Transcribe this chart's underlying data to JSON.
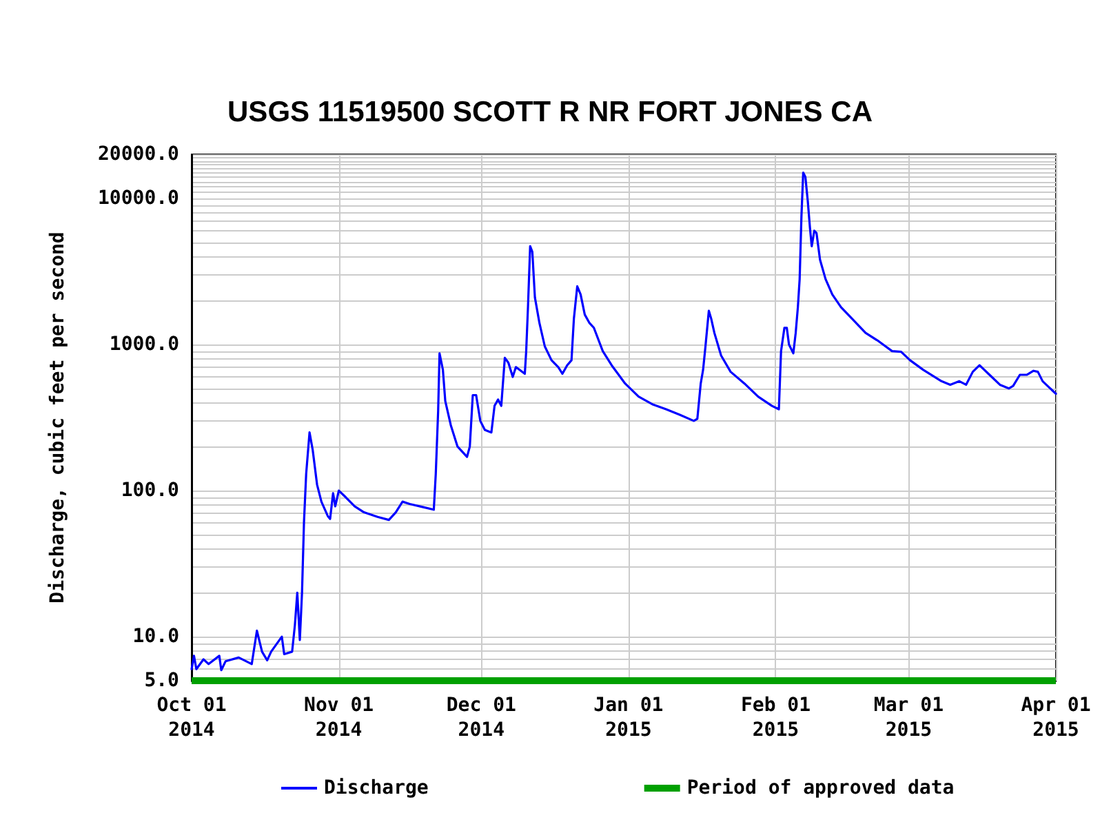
{
  "chart_data": {
    "type": "line",
    "title": "USGS 11519500 SCOTT R NR FORT JONES CA",
    "ylabel": "Discharge, cubic feet per second",
    "x": [
      "2014-10-01T00:00",
      "2014-10-01T12:00",
      "2014-10-02",
      "2014-10-03T12:00",
      "2014-10-04T14:00",
      "2014-10-06T20:00",
      "2014-10-07T06:00",
      "2014-10-08T04:00",
      "2014-10-10T22:00",
      "2014-10-13T16:00",
      "2014-10-14T18:00",
      "2014-10-15T20:00",
      "2014-10-16T22:00",
      "2014-10-17T18:00",
      "2014-10-20",
      "2014-10-20T12:00",
      "2014-10-22T04:00",
      "2014-10-22T18:00",
      "2014-10-23T06:00",
      "2014-10-23T19:00",
      "2014-10-24T06:00",
      "2014-10-24T16:00",
      "2014-10-25T03:00",
      "2014-10-25T20:00",
      "2014-10-26T12:00",
      "2014-10-27T10:00",
      "2014-10-28T08:00",
      "2014-10-29T16:00",
      "2014-10-30T04:00",
      "2014-10-30T19:00",
      "2014-10-31T06:00",
      "2014-11-01",
      "2014-11-02T11:00",
      "2014-11-04T08:00",
      "2014-11-06T07:00",
      "2014-11-09T04:00",
      "2014-11-11T13:00",
      "2014-11-13",
      "2014-11-14T10:00",
      "2014-11-15T22:00",
      "2014-11-18T19:00",
      "2014-11-21",
      "2014-11-21T10:00",
      "2014-11-21T22:00",
      "2014-11-22T05:00",
      "2014-11-22T22:00",
      "2014-11-23T10:00",
      "2014-11-24T14:00",
      "2014-11-26",
      "2014-11-28",
      "2014-11-28T14:00",
      "2014-11-29T05:00",
      "2014-11-29T22:00",
      "2014-11-30T19:00",
      "2014-12-01T18:00",
      "2014-12-03T03:00",
      "2014-12-03T19:00",
      "2014-12-04T13:00",
      "2014-12-05T05:00",
      "2014-12-05T23:00",
      "2014-12-06T17:00",
      "2014-12-07T15:00",
      "2014-12-08T07:00",
      "2014-12-10T04:00",
      "2014-12-10T11:00",
      "2014-12-10T20:00",
      "2014-12-11T07:00",
      "2014-12-11T18:00",
      "2014-12-12T07:00",
      "2014-12-13T06:00",
      "2014-12-14T09:00",
      "2014-12-15T19:00",
      "2014-12-17T05:00",
      "2014-12-18T02:00",
      "2014-12-19T02:00",
      "2014-12-20",
      "2014-12-20T12:00",
      "2014-12-21T05:00",
      "2014-12-21T22:00",
      "2014-12-22T19:00",
      "2014-12-23T19:00",
      "2014-12-24T17:00",
      "2014-12-26T14:00",
      "2014-12-28T11:00",
      "2014-12-31T07:00",
      "2015-01-03T03:00",
      "2015-01-06",
      "2015-01-08T22:00",
      "2015-01-11T19:00",
      "2015-01-14T18:00",
      "2015-01-15T12:00",
      "2015-01-16T05:00",
      "2015-01-16T17:00",
      "2015-01-17T05:00",
      "2015-01-17T22:00",
      "2015-01-18T10:00",
      "2015-01-19T02:00",
      "2015-01-20T12:00",
      "2015-01-22T12:00",
      "2015-01-25T10:00",
      "2015-01-28T07:00",
      "2015-01-31T05:00",
      "2015-02-01T16:00",
      "2015-02-02T03:00",
      "2015-02-02T20:00",
      "2015-02-03T08:00",
      "2015-02-03T19:00",
      "2015-02-04T17:00",
      "2015-02-05T05:00",
      "2015-02-05T16:00",
      "2015-02-06T01:00",
      "2015-02-06T10:00",
      "2015-02-06T19:00",
      "2015-02-07T06:00",
      "2015-02-07T18:00",
      "2015-02-08T05:00",
      "2015-02-08T14:00",
      "2015-02-09T03:00",
      "2015-02-09T14:00",
      "2015-02-10T08:00",
      "2015-02-11T12:00",
      "2015-02-12T22:00",
      "2015-02-14T18:00",
      "2015-02-17T02:00",
      "2015-02-19T22:00",
      "2015-02-22T17:00",
      "2015-02-25T12:00",
      "2015-02-27T10:00",
      "2015-03-01T07:00",
      "2015-03-04T02:00",
      "2015-03-07T22:00",
      "2015-03-09T18:00",
      "2015-03-11T16:00",
      "2015-03-13T02:00",
      "2015-03-14T12:00",
      "2015-03-15T22:00",
      "2015-03-17T19:00",
      "2015-03-20T05:00",
      "2015-03-22T02:00",
      "2015-03-23",
      "2015-03-24T10:00",
      "2015-03-25T22:00",
      "2015-03-27T07:00",
      "2015-03-28T05:00",
      "2015-03-29T05:00",
      "2015-04-01"
    ],
    "series": [
      {
        "name": "Discharge",
        "color": "#0000ff",
        "values": [
          6.0,
          7.4,
          6.0,
          7.0,
          6.5,
          7.4,
          5.9,
          6.8,
          7.2,
          6.5,
          11,
          7.9,
          6.9,
          7.9,
          10,
          7.6,
          7.9,
          12,
          20,
          9.5,
          20,
          61,
          130,
          250,
          190,
          110,
          84,
          67,
          64,
          96,
          78,
          100,
          90,
          78,
          71,
          66,
          63,
          71,
          84,
          81,
          77,
          74,
          130,
          350,
          870,
          670,
          410,
          280,
          200,
          170,
          200,
          450,
          450,
          300,
          260,
          250,
          380,
          420,
          380,
          810,
          750,
          600,
          700,
          630,
          900,
          1800,
          4700,
          4300,
          2100,
          1400,
          970,
          780,
          700,
          630,
          720,
          780,
          1500,
          2500,
          2200,
          1600,
          1400,
          1300,
          900,
          720,
          540,
          440,
          390,
          360,
          330,
          300,
          310,
          540,
          670,
          970,
          1700,
          1500,
          1200,
          840,
          650,
          540,
          440,
          380,
          360,
          900,
          1300,
          1300,
          1000,
          870,
          1200,
          1800,
          2800,
          7500,
          15000,
          14000,
          9600,
          6300,
          4700,
          6000,
          5800,
          3800,
          2800,
          2200,
          1800,
          1500,
          1200,
          1050,
          900,
          890,
          780,
          670,
          560,
          530,
          560,
          530,
          650,
          720,
          630,
          530,
          500,
          520,
          620,
          620,
          660,
          650,
          560,
          460
        ]
      },
      {
        "name": "Period of approved data",
        "color": "#00a000",
        "x": [
          "2014-10-01",
          "2015-04-01"
        ],
        "values": [
          5,
          5
        ]
      }
    ],
    "xlim": [
      "2014-10-01",
      "2015-04-01"
    ],
    "xticks": [
      {
        "value": "2014-10-01",
        "label": "Oct 01\n2014"
      },
      {
        "value": "2014-11-01",
        "label": "Nov 01\n2014"
      },
      {
        "value": "2014-12-01",
        "label": "Dec 01\n2014"
      },
      {
        "value": "2015-01-01",
        "label": "Jan 01\n2015"
      },
      {
        "value": "2015-02-01",
        "label": "Feb 01\n2015"
      },
      {
        "value": "2015-03-01",
        "label": "Mar 01\n2015"
      },
      {
        "value": "2015-04-01",
        "label": "Apr 01\n2015"
      }
    ],
    "ylim": [
      5,
      20000
    ],
    "yticks": [
      {
        "value": 5,
        "label": "5.0"
      },
      {
        "value": 6,
        "label": null
      },
      {
        "value": 7,
        "label": null
      },
      {
        "value": 8,
        "label": null
      },
      {
        "value": 9,
        "label": null
      },
      {
        "value": 10,
        "label": "10.0"
      },
      {
        "value": 20,
        "label": null
      },
      {
        "value": 30,
        "label": null
      },
      {
        "value": 40,
        "label": null
      },
      {
        "value": 50,
        "label": null
      },
      {
        "value": 60,
        "label": null
      },
      {
        "value": 70,
        "label": null
      },
      {
        "value": 80,
        "label": null
      },
      {
        "value": 90,
        "label": null
      },
      {
        "value": 100,
        "label": "100.0"
      },
      {
        "value": 200,
        "label": null
      },
      {
        "value": 300,
        "label": null
      },
      {
        "value": 400,
        "label": null
      },
      {
        "value": 500,
        "label": null
      },
      {
        "value": 600,
        "label": null
      },
      {
        "value": 700,
        "label": null
      },
      {
        "value": 800,
        "label": null
      },
      {
        "value": 900,
        "label": null
      },
      {
        "value": 1000,
        "label": "1000.0"
      },
      {
        "value": 2000,
        "label": null
      },
      {
        "value": 3000,
        "label": null
      },
      {
        "value": 4000,
        "label": null
      },
      {
        "value": 5000,
        "label": null
      },
      {
        "value": 6000,
        "label": null
      },
      {
        "value": 7000,
        "label": null
      },
      {
        "value": 8000,
        "label": null
      },
      {
        "value": 9000,
        "label": null
      },
      {
        "value": 10000,
        "label": "10000.0"
      },
      {
        "value": 11000,
        "label": null
      },
      {
        "value": 12000,
        "label": null
      },
      {
        "value": 13000,
        "label": null
      },
      {
        "value": 14000,
        "label": null
      },
      {
        "value": 15000,
        "label": null
      },
      {
        "value": 16000,
        "label": null
      },
      {
        "value": 17000,
        "label": null
      },
      {
        "value": 18000,
        "label": null
      },
      {
        "value": 19000,
        "label": null
      },
      {
        "value": 20000,
        "label": "20000.0"
      }
    ],
    "log": true,
    "grid": true,
    "legend": "bottom",
    "marker": "none"
  }
}
